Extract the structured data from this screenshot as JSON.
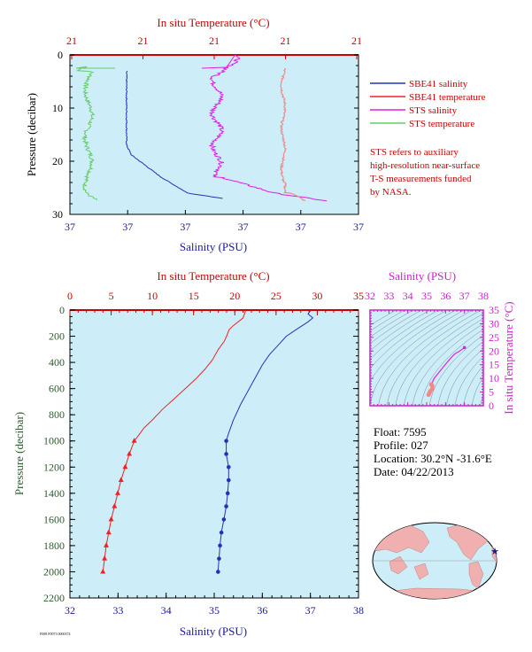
{
  "colors": {
    "plot_bg": "#cdeef8",
    "sbe_salinity": "#2233bb",
    "sbe_temperature": "#ee2222",
    "sts_salinity": "#dd22dd",
    "sts_temperature": "#66cc66",
    "sts_temp_light": "#f08a8a",
    "axis_red": "#cc0000",
    "axis_blue": "#1a1a99",
    "axis_green": "#2e5a2e",
    "axis_magenta": "#cc22cc"
  },
  "top_panel": {
    "xlabel_top": "In situ Temperature (°C)",
    "xlabel_bottom": "Salinity (PSU)",
    "ylabel": "Pressure (decibar)",
    "top_ticks": [
      "21",
      "21",
      "21",
      "21",
      "21"
    ],
    "bottom_ticks": [
      "37",
      "37",
      "37",
      "37",
      "37",
      "37"
    ],
    "y_ticks": [
      "0",
      "10",
      "20",
      "30"
    ]
  },
  "legend": {
    "items": [
      {
        "label": "SBE41 salinity",
        "color": "#2233bb"
      },
      {
        "label": "SBE41 temperature",
        "color": "#ee2222"
      },
      {
        "label": "STS salinity",
        "color": "#dd22dd"
      },
      {
        "label": "STS temperature",
        "color": "#66cc66"
      }
    ],
    "note_lines": [
      "STS refers to auxiliary",
      "high-resolution near-surface",
      "T-S measurements funded",
      "by NASA."
    ]
  },
  "main_panel": {
    "xlabel_top": "In situ Temperature (°C)",
    "xlabel_bottom": "Salinity (PSU)",
    "ylabel": "Pressure (decibar)",
    "top_ticks": [
      "0",
      "5",
      "10",
      "15",
      "20",
      "25",
      "30",
      "35"
    ],
    "bottom_ticks": [
      "32",
      "33",
      "34",
      "35",
      "36",
      "37",
      "38"
    ],
    "y_ticks": [
      "0",
      "200",
      "400",
      "600",
      "800",
      "1000",
      "1200",
      "1400",
      "1600",
      "1800",
      "2000",
      "2200"
    ]
  },
  "ts_panel": {
    "xlabel_top": "Salinity (PSU)",
    "ylabel_right": "In situ Temperature (°C)",
    "top_ticks": [
      "32",
      "33",
      "34",
      "35",
      "36",
      "37",
      "38"
    ],
    "right_ticks": [
      "0",
      "5",
      "10",
      "15",
      "20",
      "25",
      "30",
      "35"
    ]
  },
  "float_info": {
    "float_line": "Float: 7595",
    "profile_line": "Profile: 027",
    "location_line": "Location: 30.2°N -31.6°E",
    "date_line": "Date: 04/22/2013"
  },
  "footer_code": "F008 F0073 0000374",
  "chart_data": [
    {
      "type": "line",
      "title": "",
      "xlabel": "Salinity (PSU)",
      "ylabel": "Pressure (decibar)",
      "xlim": [
        32,
        38
      ],
      "ylim": [
        2200,
        0
      ],
      "series": [
        {
          "name": "SBE41 temperature",
          "axis": "temperature",
          "xlim_temperature": [
            0,
            35
          ],
          "points": [
            [
              21.3,
              5
            ],
            [
              21.0,
              60
            ],
            [
              19.8,
              120
            ],
            [
              19.3,
              150
            ],
            [
              19.0,
              200
            ],
            [
              18.7,
              240
            ],
            [
              18.0,
              300
            ],
            [
              17.3,
              380
            ],
            [
              16.4,
              450
            ],
            [
              15.2,
              530
            ],
            [
              14.0,
              600
            ],
            [
              12.6,
              680
            ],
            [
              11.2,
              760
            ],
            [
              10.0,
              840
            ],
            [
              9.0,
              900
            ],
            [
              8.3,
              960
            ],
            [
              7.8,
              1000
            ],
            [
              7.2,
              1100
            ],
            [
              6.7,
              1200
            ],
            [
              6.2,
              1300
            ],
            [
              5.8,
              1400
            ],
            [
              5.4,
              1500
            ],
            [
              5.0,
              1600
            ],
            [
              4.7,
              1700
            ],
            [
              4.4,
              1800
            ],
            [
              4.2,
              1900
            ],
            [
              4.0,
              2000
            ]
          ]
        },
        {
          "name": "SBE41 salinity",
          "axis": "salinity",
          "points": [
            [
              37.0,
              5
            ],
            [
              36.95,
              30
            ],
            [
              37.05,
              60
            ],
            [
              36.95,
              90
            ],
            [
              36.7,
              150
            ],
            [
              36.5,
              200
            ],
            [
              36.35,
              260
            ],
            [
              36.15,
              340
            ],
            [
              36.0,
              420
            ],
            [
              35.85,
              520
            ],
            [
              35.7,
              620
            ],
            [
              35.55,
              720
            ],
            [
              35.4,
              840
            ],
            [
              35.3,
              940
            ],
            [
              35.25,
              1000
            ],
            [
              35.25,
              1100
            ],
            [
              35.3,
              1200
            ],
            [
              35.3,
              1300
            ],
            [
              35.28,
              1400
            ],
            [
              35.25,
              1500
            ],
            [
              35.2,
              1600
            ],
            [
              35.15,
              1700
            ],
            [
              35.12,
              1800
            ],
            [
              35.1,
              1900
            ],
            [
              35.08,
              2000
            ]
          ]
        }
      ]
    },
    {
      "type": "scatter",
      "title": "",
      "xlabel": "Salinity (PSU)",
      "ylabel": "In situ Temperature (°C)",
      "xlim": [
        32,
        38
      ],
      "ylim": [
        0,
        35
      ],
      "series": [
        {
          "points": [
            [
              35.1,
              4.0
            ],
            [
              35.15,
              4.7
            ],
            [
              35.2,
              5.4
            ],
            [
              35.3,
              6.2
            ],
            [
              35.3,
              7.2
            ],
            [
              35.25,
              7.8
            ],
            [
              35.4,
              10.0
            ],
            [
              35.7,
              12.6
            ],
            [
              36.0,
              15.2
            ],
            [
              36.35,
              18.0
            ],
            [
              36.5,
              19.0
            ],
            [
              36.7,
              19.8
            ],
            [
              36.95,
              21.0
            ],
            [
              37.0,
              21.3
            ]
          ]
        }
      ]
    }
  ]
}
